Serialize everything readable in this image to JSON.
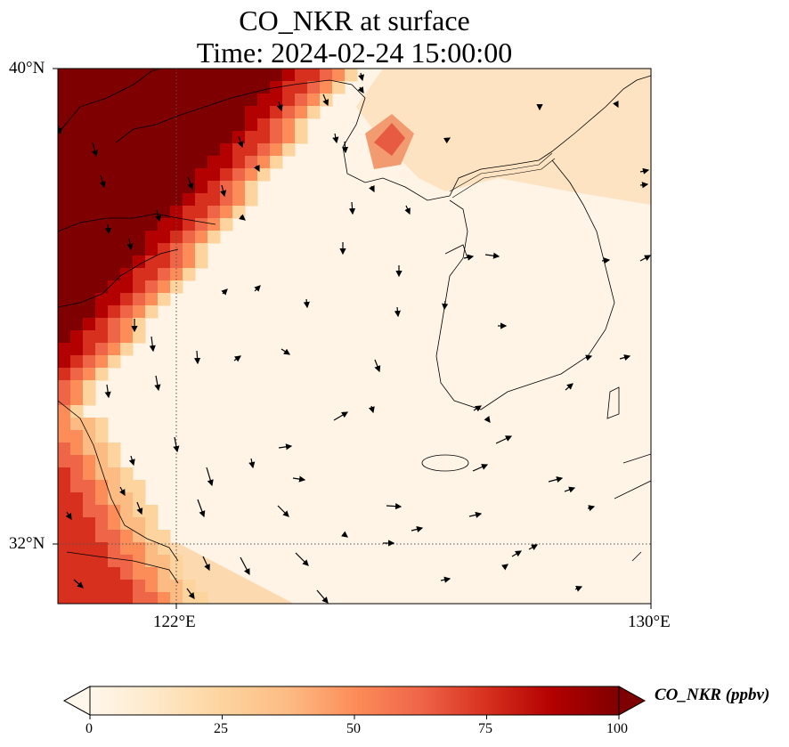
{
  "title": {
    "line1": "CO_NKR at surface",
    "line2": "Time: 2024-02-24 15:00:00"
  },
  "axes": {
    "lat_labels": [
      "40°N",
      "32°N"
    ],
    "lon_labels": [
      "122°E",
      "130°E"
    ],
    "lat_range": [
      31,
      40
    ],
    "lon_range": [
      120,
      130
    ],
    "gridlines": "dotted at 32°N and 122°E"
  },
  "colorbar": {
    "label": "CO_NKR (ppbv)",
    "ticks": [
      "0",
      "25",
      "50",
      "75",
      "100"
    ],
    "range": [
      0,
      100
    ],
    "colormap": "OrRd",
    "extend": "both",
    "colors": [
      "#fff7ec",
      "#fee8c8",
      "#fdd49e",
      "#fdbb84",
      "#fc8d59",
      "#ef6548",
      "#d7301f",
      "#b30000",
      "#7f0000"
    ]
  },
  "chart_data": {
    "type": "heatmap",
    "variable": "CO_NKR",
    "units": "ppbv",
    "level": "surface",
    "time": "2024-02-24 15:00:00",
    "region": {
      "lon": [
        120,
        130
      ],
      "lat": [
        31,
        40
      ]
    },
    "pattern": "High concentrations (>90 ppbv) along the Chinese coast in the northwest; moderate plume (~40 ppbv) over the northern Yellow Sea near 38.5°N 125.9°E; low values (<15 ppbv) over the Korean Peninsula and East China Sea.",
    "wind_vectors": "shown as black arrows"
  }
}
